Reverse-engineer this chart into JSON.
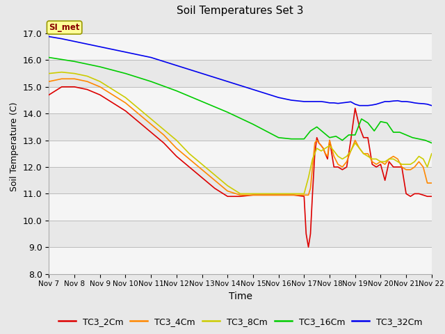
{
  "title": "Soil Temperatures Set 3",
  "xlabel": "Time",
  "ylabel": "Soil Temperature (C)",
  "ylim": [
    8.0,
    17.5
  ],
  "yticks": [
    8.0,
    9.0,
    10.0,
    11.0,
    12.0,
    13.0,
    14.0,
    15.0,
    16.0,
    17.0
  ],
  "bg_color": "#e8e8e8",
  "stripe_light": "#f5f5f5",
  "stripe_dark": "#e0e0e0",
  "annotation_text": "SI_met",
  "annotation_bg": "#ffff99",
  "annotation_border": "#999900",
  "series": [
    {
      "label": "TC3_2Cm",
      "color": "#dd0000",
      "x": [
        7,
        7.5,
        8,
        8.5,
        9,
        9.5,
        10,
        10.5,
        11,
        11.5,
        12,
        12.5,
        13,
        13.5,
        14,
        14.5,
        15,
        15.3,
        15.6,
        16,
        16.3,
        16.6,
        17,
        17.08,
        17.17,
        17.25,
        17.33,
        17.42,
        17.5,
        17.58,
        17.67,
        17.75,
        17.83,
        17.92,
        18,
        18.17,
        18.33,
        18.5,
        18.67,
        18.83,
        19,
        19.17,
        19.33,
        19.5,
        19.67,
        19.83,
        20,
        20.17,
        20.33,
        20.5,
        20.67,
        20.83,
        21,
        21.17,
        21.33,
        21.5,
        21.67,
        21.83,
        22
      ],
      "y": [
        14.7,
        15.0,
        15.0,
        14.9,
        14.7,
        14.4,
        14.1,
        13.7,
        13.3,
        12.9,
        12.4,
        12.0,
        11.6,
        11.2,
        10.9,
        10.9,
        10.95,
        10.95,
        10.95,
        10.95,
        10.95,
        10.95,
        10.9,
        9.5,
        9.0,
        9.5,
        11.0,
        12.5,
        13.1,
        12.9,
        12.8,
        12.7,
        12.5,
        12.3,
        13.0,
        12.0,
        12.0,
        11.9,
        12.0,
        13.0,
        14.2,
        13.5,
        13.1,
        13.1,
        12.1,
        12.0,
        12.1,
        11.5,
        12.2,
        12.0,
        12.0,
        12.0,
        11.0,
        10.9,
        11.0,
        11.0,
        10.95,
        10.9,
        10.9
      ]
    },
    {
      "label": "TC3_4Cm",
      "color": "#ff8800",
      "x": [
        7,
        7.5,
        8,
        8.5,
        9,
        9.5,
        10,
        10.5,
        11,
        11.5,
        12,
        12.5,
        13,
        13.5,
        14,
        14.5,
        15,
        15.3,
        15.6,
        16,
        16.3,
        16.6,
        17,
        17.08,
        17.17,
        17.25,
        17.33,
        17.42,
        17.5,
        17.58,
        17.67,
        17.75,
        17.83,
        17.92,
        18,
        18.17,
        18.33,
        18.5,
        18.67,
        18.83,
        19,
        19.17,
        19.33,
        19.5,
        19.67,
        19.83,
        20,
        20.17,
        20.33,
        20.5,
        20.67,
        20.83,
        21,
        21.17,
        21.33,
        21.5,
        21.67,
        21.83,
        22
      ],
      "y": [
        15.2,
        15.3,
        15.3,
        15.2,
        15.0,
        14.7,
        14.4,
        14.0,
        13.6,
        13.2,
        12.7,
        12.3,
        11.9,
        11.5,
        11.1,
        10.95,
        10.95,
        10.95,
        10.95,
        10.95,
        10.95,
        10.95,
        10.95,
        10.95,
        10.95,
        11.2,
        12.0,
        12.9,
        13.0,
        12.9,
        12.8,
        12.7,
        12.5,
        12.4,
        13.0,
        12.4,
        12.1,
        12.0,
        12.2,
        12.6,
        13.0,
        12.7,
        12.5,
        12.5,
        12.2,
        12.1,
        12.2,
        12.1,
        12.3,
        12.4,
        12.3,
        12.0,
        11.9,
        11.9,
        12.0,
        12.2,
        12.0,
        11.4,
        11.4
      ]
    },
    {
      "label": "TC3_8Cm",
      "color": "#cccc00",
      "x": [
        7,
        7.5,
        8,
        8.5,
        9,
        9.5,
        10,
        10.5,
        11,
        11.5,
        12,
        12.5,
        13,
        13.5,
        14,
        14.5,
        15,
        15.3,
        15.6,
        16,
        16.3,
        16.6,
        17,
        17.17,
        17.33,
        17.5,
        17.67,
        17.83,
        18,
        18.17,
        18.33,
        18.5,
        18.67,
        18.83,
        19,
        19.17,
        19.33,
        19.5,
        19.67,
        19.83,
        20,
        20.17,
        20.33,
        20.5,
        20.67,
        20.83,
        21,
        21.17,
        21.33,
        21.5,
        21.67,
        21.83,
        22
      ],
      "y": [
        15.5,
        15.55,
        15.5,
        15.4,
        15.2,
        14.9,
        14.6,
        14.2,
        13.8,
        13.4,
        13.0,
        12.5,
        12.1,
        11.7,
        11.3,
        11.0,
        11.0,
        11.0,
        11.0,
        11.0,
        11.0,
        11.0,
        11.0,
        11.6,
        12.3,
        12.7,
        12.6,
        12.7,
        12.8,
        12.6,
        12.4,
        12.3,
        12.4,
        12.6,
        12.9,
        12.7,
        12.5,
        12.4,
        12.3,
        12.3,
        12.2,
        12.2,
        12.3,
        12.3,
        12.2,
        12.1,
        12.1,
        12.1,
        12.2,
        12.4,
        12.3,
        12.0,
        12.5
      ]
    },
    {
      "label": "TC3_16Cm",
      "color": "#00cc00",
      "x": [
        7,
        8,
        9,
        10,
        11,
        12,
        13,
        14,
        15,
        16,
        16.5,
        17,
        17.25,
        17.5,
        17.75,
        18,
        18.25,
        18.5,
        18.75,
        19,
        19.25,
        19.5,
        19.75,
        20,
        20.25,
        20.5,
        20.75,
        21,
        21.25,
        21.5,
        21.75,
        22
      ],
      "y": [
        16.1,
        15.95,
        15.75,
        15.5,
        15.2,
        14.85,
        14.45,
        14.05,
        13.6,
        13.1,
        13.05,
        13.05,
        13.35,
        13.5,
        13.3,
        13.1,
        13.15,
        13.0,
        13.2,
        13.2,
        13.8,
        13.65,
        13.35,
        13.7,
        13.65,
        13.3,
        13.3,
        13.2,
        13.1,
        13.05,
        13.0,
        12.9
      ]
    },
    {
      "label": "TC3_32Cm",
      "color": "#0000ee",
      "x": [
        7,
        7.5,
        8,
        8.5,
        9,
        9.5,
        10,
        10.5,
        11,
        11.5,
        12,
        12.5,
        13,
        13.5,
        14,
        14.5,
        15,
        15.5,
        16,
        16.5,
        17,
        17.17,
        17.33,
        17.5,
        17.67,
        17.83,
        18,
        18.17,
        18.33,
        18.5,
        18.67,
        18.83,
        19,
        19.17,
        19.33,
        19.5,
        19.67,
        19.83,
        20,
        20.17,
        20.33,
        20.5,
        20.67,
        20.83,
        21,
        21.17,
        21.33,
        21.5,
        21.67,
        21.83,
        22
      ],
      "y": [
        16.88,
        16.8,
        16.7,
        16.6,
        16.5,
        16.4,
        16.3,
        16.2,
        16.1,
        15.95,
        15.8,
        15.65,
        15.5,
        15.35,
        15.2,
        15.05,
        14.9,
        14.75,
        14.6,
        14.5,
        14.45,
        14.45,
        14.45,
        14.45,
        14.45,
        14.43,
        14.4,
        14.4,
        14.38,
        14.4,
        14.42,
        14.44,
        14.35,
        14.3,
        14.3,
        14.3,
        14.32,
        14.35,
        14.4,
        14.45,
        14.45,
        14.47,
        14.48,
        14.45,
        14.45,
        14.43,
        14.4,
        14.38,
        14.37,
        14.35,
        14.3
      ]
    }
  ]
}
